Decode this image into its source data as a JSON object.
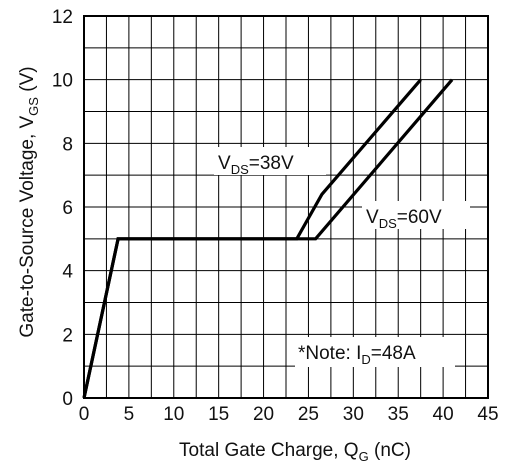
{
  "chart_data": {
    "type": "line",
    "title": "",
    "xlabel": {
      "prefix": "Total Gate Charge, Q",
      "sub": "G",
      "suffix": " (nC)"
    },
    "ylabel": {
      "prefix": "Gate-to-Source Voltage, V",
      "sub": "GS",
      "suffix": " (V)"
    },
    "xlim": [
      0,
      45
    ],
    "ylim": [
      0,
      12
    ],
    "x_ticks": [
      0,
      5,
      10,
      15,
      20,
      25,
      30,
      35,
      40,
      45
    ],
    "y_ticks": [
      0,
      2,
      4,
      6,
      8,
      10,
      12
    ],
    "x_grid_step": 2.5,
    "y_grid_step": 1,
    "grid": true,
    "series": [
      {
        "name": "VDS=38V",
        "label": {
          "prefix": "V",
          "sub": "DS",
          "suffix": "=38V"
        },
        "x": [
          0,
          3.8,
          23.7,
          26.5,
          37.5
        ],
        "y": [
          0,
          5,
          5,
          6.4,
          10
        ]
      },
      {
        "name": "VDS=60V",
        "label": {
          "prefix": "V",
          "sub": "DS",
          "suffix": "=60V"
        },
        "x": [
          0,
          3.8,
          25.8,
          41
        ],
        "y": [
          0,
          5,
          5,
          10
        ]
      }
    ],
    "note": {
      "prefix": "*Note: I",
      "sub": "D",
      "suffix": "=48A"
    }
  }
}
